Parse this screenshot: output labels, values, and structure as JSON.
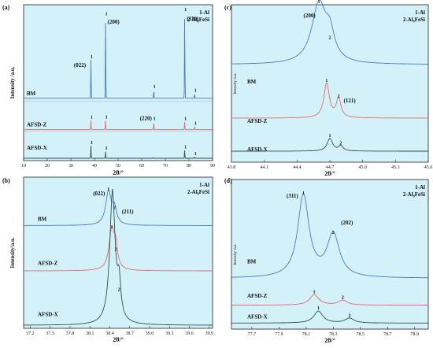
{
  "figure": {
    "colors": {
      "background_band": "#d3f1f8",
      "bm": "#4a78c8",
      "afsd_z": "#e46b6b",
      "afsd_x": "#2f4f4f",
      "plot_bg": "#ffffff"
    }
  },
  "chart_data": [
    {
      "panel": "(a)",
      "type": "line",
      "xlabel": "2θ/°",
      "ylabel": "Intensity /a.u.",
      "xlim": [
        10,
        90
      ],
      "xticks": [
        "10",
        "20",
        "30",
        "40",
        "50",
        "60",
        "70",
        "80",
        "90"
      ],
      "legend": [
        "1-Al",
        "2-Al₈FeSi"
      ],
      "series": [
        {
          "name": "BM",
          "peaks": [
            [
              38.5,
              0.45
            ],
            [
              44.7,
              0.95
            ],
            [
              65.1,
              0.1
            ],
            [
              78.2,
              1.0
            ],
            [
              82.4,
              0.06
            ]
          ]
        },
        {
          "name": "AFSD-Z",
          "peaks": [
            [
              38.5,
              0.35
            ],
            [
              44.7,
              0.35
            ],
            [
              65.1,
              0.3
            ],
            [
              78.2,
              0.3
            ],
            [
              82.4,
              0.12
            ]
          ]
        },
        {
          "name": "AFSD-X",
          "peaks": [
            [
              38.5,
              0.45
            ],
            [
              44.7,
              0.25
            ],
            [
              65.1,
              0.03
            ],
            [
              78.2,
              0.3
            ],
            [
              82.4,
              0.05
            ]
          ]
        }
      ],
      "annotations": [
        {
          "text": "(022)",
          "x": 38.5
        },
        {
          "text": "(200)",
          "x": 44.7
        },
        {
          "text": "(220)",
          "x": 65.1
        },
        {
          "text": "(311)",
          "x": 78.2
        }
      ],
      "peak_markers": [
        "1",
        "2"
      ]
    },
    {
      "panel": "(b)",
      "type": "line",
      "xlabel": "2θ/°",
      "ylabel": "Intensity/a.u.",
      "xlim": [
        37.1,
        39.95
      ],
      "xticks": [
        "37.2",
        "37.5",
        "37.8",
        "38.1",
        "38.4",
        "38.7",
        "39.0",
        "39.3",
        "39.6",
        "39.9"
      ],
      "legend": [
        "1-Al",
        "2-Al₈FeSi"
      ],
      "series": [
        {
          "name": "BM",
          "peaks": [
            [
              38.38,
              1.0,
              0.05
            ],
            [
              38.47,
              0.45,
              0.04
            ]
          ]
        },
        {
          "name": "AFSD-Z",
          "peaks": [
            [
              38.43,
              1.0,
              0.05
            ],
            [
              38.49,
              0.45,
              0.03
            ]
          ]
        },
        {
          "name": "AFSD-X",
          "peaks": [
            [
              38.44,
              1.0,
              0.05
            ],
            [
              38.54,
              0.25,
              0.03
            ]
          ]
        }
      ],
      "annotations": [
        {
          "text": "(022)",
          "x": 38.38
        },
        {
          "text": "(211)",
          "x": 38.48
        }
      ]
    },
    {
      "panel": "(c)",
      "type": "line",
      "xlabel": "2θ/°",
      "xlim": [
        43.8,
        45.6
      ],
      "xticks": [
        "43.8",
        "44.1",
        "44.4",
        "44.7",
        "45.0",
        "45.3",
        "45.6"
      ],
      "legend": [
        "1-Al",
        "2-Al₈FeSi"
      ],
      "series": [
        {
          "name": "BM",
          "peaks": [
            [
              44.6,
              1.0,
              0.08
            ],
            [
              44.7,
              0.4,
              0.05
            ]
          ]
        },
        {
          "name": "AFSD-Z",
          "peaks": [
            [
              44.67,
              1.0,
              0.03
            ],
            [
              44.78,
              0.55,
              0.025
            ]
          ]
        },
        {
          "name": "AFSD-X",
          "peaks": [
            [
              44.7,
              1.0,
              0.03
            ],
            [
              44.8,
              0.4,
              0.025
            ]
          ]
        }
      ],
      "annotations": [
        {
          "text": "(200)",
          "x": 44.6
        },
        {
          "text": "(121)",
          "x": 44.78
        }
      ]
    },
    {
      "panel": "(d)",
      "type": "line",
      "xlabel": "2θ/°",
      "xlim": [
        77.55,
        79.0
      ],
      "xticks": [
        "77.7",
        "77.9",
        "78.1",
        "78.3",
        "78.5",
        "78.7",
        "78.9"
      ],
      "legend": [
        "1-Al",
        "2-Al₈FeSi"
      ],
      "series": [
        {
          "name": "BM",
          "peaks": [
            [
              78.08,
              1.0,
              0.05
            ],
            [
              78.3,
              0.52,
              0.055
            ]
          ]
        },
        {
          "name": "AFSD-Z",
          "peaks": [
            [
              78.16,
              1.0,
              0.04
            ],
            [
              78.37,
              0.45,
              0.04
            ]
          ]
        },
        {
          "name": "AFSD-X",
          "peaks": [
            [
              78.19,
              1.0,
              0.04
            ],
            [
              78.42,
              0.4,
              0.04
            ]
          ]
        }
      ],
      "annotations": [
        {
          "text": "(311)",
          "x": 78.08
        },
        {
          "text": "(202)",
          "x": 78.32
        }
      ]
    }
  ]
}
